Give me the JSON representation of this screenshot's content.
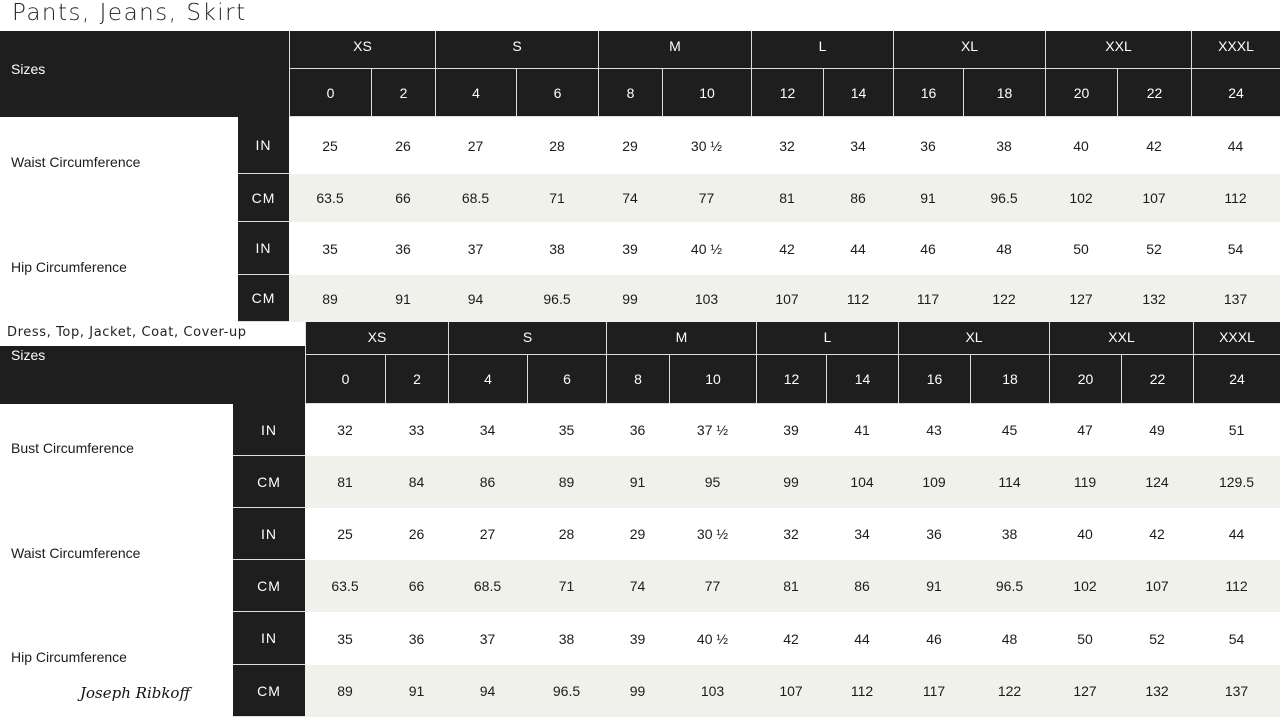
{
  "tables": [
    {
      "title": "Pants, Jeans, Skirt",
      "sizes_label": "Sizes",
      "groups": [
        "XS",
        "S",
        "M",
        "L",
        "XL",
        "XXL",
        "XXXL"
      ],
      "group_spans": [
        2,
        2,
        2,
        2,
        2,
        2,
        1
      ],
      "sizes": [
        "0",
        "2",
        "4",
        "6",
        "8",
        "10",
        "12",
        "14",
        "16",
        "18",
        "20",
        "22",
        "24"
      ],
      "measures": [
        {
          "label": "Waist Circumference",
          "rows": [
            {
              "unit": "IN",
              "values": [
                "25",
                "26",
                "27",
                "28",
                "29",
                "30 ½",
                "32",
                "34",
                "36",
                "38",
                "40",
                "42",
                "44"
              ]
            },
            {
              "unit": "CM",
              "values": [
                "63.5",
                "66",
                "68.5",
                "71",
                "74",
                "77",
                "81",
                "86",
                "91",
                "96.5",
                "102",
                "107",
                "112"
              ]
            }
          ]
        },
        {
          "label": "Hip Circumference",
          "rows": [
            {
              "unit": "IN",
              "values": [
                "35",
                "36",
                "37",
                "38",
                "39",
                "40 ½",
                "42",
                "44",
                "46",
                "48",
                "50",
                "52",
                "54"
              ]
            },
            {
              "unit": "CM",
              "values": [
                "89",
                "91",
                "94",
                "96.5",
                "99",
                "103",
                "107",
                "112",
                "117",
                "122",
                "127",
                "132",
                "137"
              ]
            }
          ]
        }
      ]
    },
    {
      "title": "Dress, Top, Jacket, Coat, Cover-up",
      "sizes_label": "Sizes",
      "groups": [
        "XS",
        "S",
        "M",
        "L",
        "XL",
        "XXL",
        "XXXL"
      ],
      "group_spans": [
        2,
        2,
        2,
        2,
        2,
        2,
        1
      ],
      "sizes": [
        "0",
        "2",
        "4",
        "6",
        "8",
        "10",
        "12",
        "14",
        "16",
        "18",
        "20",
        "22",
        "24"
      ],
      "measures": [
        {
          "label": "Bust Circumference",
          "rows": [
            {
              "unit": "IN",
              "values": [
                "32",
                "33",
                "34",
                "35",
                "36",
                "37 ½",
                "39",
                "41",
                "43",
                "45",
                "47",
                "49",
                "51"
              ]
            },
            {
              "unit": "CM",
              "values": [
                "81",
                "84",
                "86",
                "89",
                "91",
                "95",
                "99",
                "104",
                "109",
                "114",
                "119",
                "124",
                "129.5"
              ]
            }
          ]
        },
        {
          "label": "Waist Circumference",
          "rows": [
            {
              "unit": "IN",
              "values": [
                "25",
                "26",
                "27",
                "28",
                "29",
                "30 ½",
                "32",
                "34",
                "36",
                "38",
                "40",
                "42",
                "44"
              ]
            },
            {
              "unit": "CM",
              "values": [
                "63.5",
                "66",
                "68.5",
                "71",
                "74",
                "77",
                "81",
                "86",
                "91",
                "96.5",
                "102",
                "107",
                "112"
              ]
            }
          ]
        },
        {
          "label": "Hip Circumference",
          "rows": [
            {
              "unit": "IN",
              "values": [
                "35",
                "36",
                "37",
                "38",
                "39",
                "40 ½",
                "42",
                "44",
                "46",
                "48",
                "50",
                "52",
                "54"
              ]
            },
            {
              "unit": "CM",
              "values": [
                "89",
                "91",
                "94",
                "96.5",
                "99",
                "103",
                "107",
                "112",
                "117",
                "122",
                "127",
                "132",
                "137"
              ]
            }
          ]
        }
      ]
    }
  ],
  "brand": {
    "signature": "Joseph Ribkoff"
  },
  "colors": {
    "header": "#1e1e1e",
    "stripe": "#f1f1ec"
  }
}
